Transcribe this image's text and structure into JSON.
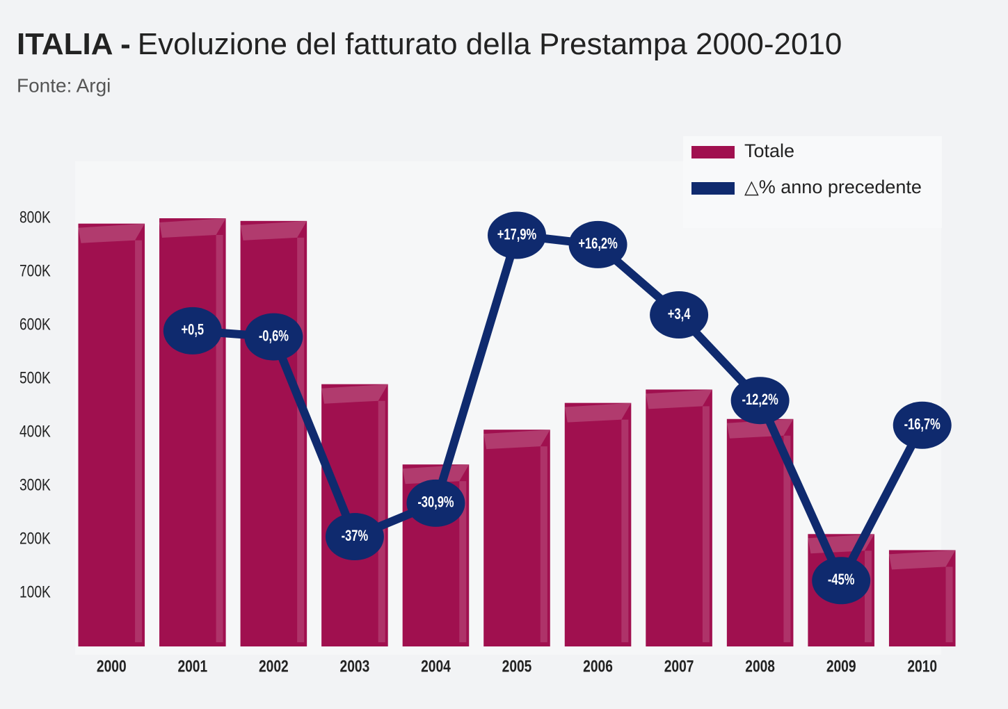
{
  "chart_data": {
    "type": "bar",
    "title_prefix": "ITALIA -",
    "title": "Evoluzione del fatturato della Prestampa 2000-2010",
    "subtitle": "Fonte: Argi",
    "categories": [
      "2000",
      "2001",
      "2002",
      "2003",
      "2004",
      "2005",
      "2006",
      "2007",
      "2008",
      "2009",
      "2010"
    ],
    "ylim": [
      0,
      800000
    ],
    "yticks": [
      {
        "value": 100000,
        "label": "100K"
      },
      {
        "value": 200000,
        "label": "200K"
      },
      {
        "value": 300000,
        "label": "300K"
      },
      {
        "value": 400000,
        "label": "400K"
      },
      {
        "value": 500000,
        "label": "500K"
      },
      {
        "value": 600000,
        "label": "600K"
      },
      {
        "value": 700000,
        "label": "700K"
      },
      {
        "value": 800000,
        "label": "800K"
      }
    ],
    "y2lim": [
      -57,
      21
    ],
    "legend": "top-right",
    "series": [
      {
        "name": "Totale",
        "color": "#a0104f",
        "type": "bar",
        "values": [
          790000,
          800000,
          795000,
          490000,
          340000,
          405000,
          455000,
          480000,
          425000,
          210000,
          180000
        ]
      },
      {
        "name": "△% anno precedente",
        "color": "#0f2a6e",
        "type": "line",
        "axis": "y2",
        "values": [
          null,
          0.5,
          -0.6,
          -37,
          -30.9,
          17.9,
          16.2,
          3.4,
          -12.2,
          -45,
          -16.7
        ],
        "value_labels": [
          null,
          "+0,5",
          "-0,6%",
          "-37%",
          "-30,9%",
          "+17,9%",
          "+16,2%",
          "+3,4",
          "-12,2%",
          "-45%",
          "-16,7%"
        ]
      }
    ]
  }
}
